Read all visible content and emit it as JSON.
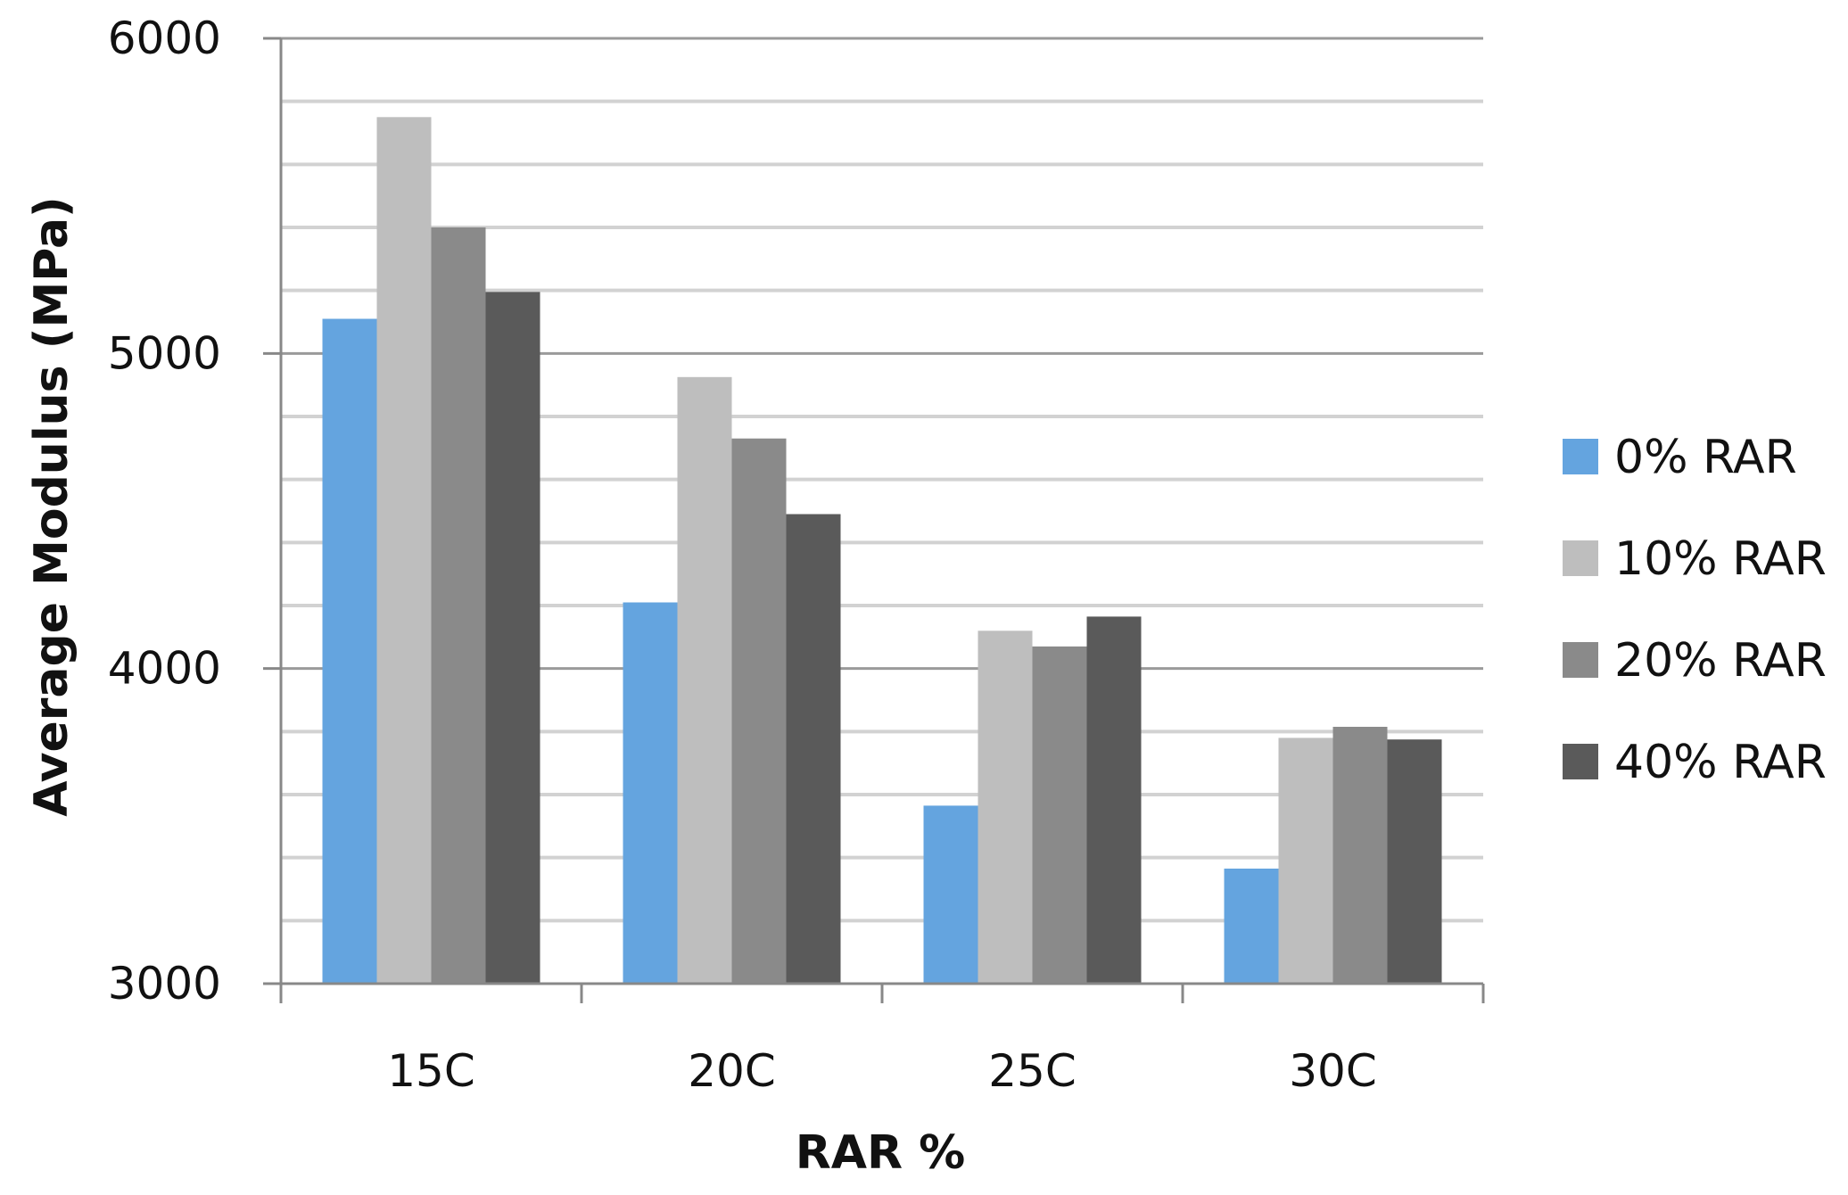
{
  "chart_data": {
    "type": "bar",
    "categories": [
      "15C",
      "20C",
      "25C",
      "30C"
    ],
    "series": [
      {
        "name": "0% RAR",
        "color": "#64A4DF",
        "values": [
          5110,
          4210,
          3565,
          3365
        ]
      },
      {
        "name": "10% RAR",
        "color": "#BEBEBE",
        "values": [
          5750,
          4925,
          4120,
          3780
        ]
      },
      {
        "name": "20% RAR",
        "color": "#8A8A8A",
        "values": [
          5400,
          4730,
          4070,
          3815
        ]
      },
      {
        "name": "40% RAR",
        "color": "#5A5A5A",
        "values": [
          5195,
          4490,
          4165,
          3775
        ]
      }
    ],
    "title": "",
    "xlabel": "RAR %",
    "ylabel": "Average Modulus (MPa)",
    "ylim": [
      3000,
      6000
    ],
    "yticks": [
      "3000",
      "4000",
      "5000",
      "6000"
    ],
    "grid": true,
    "legend": "right"
  }
}
